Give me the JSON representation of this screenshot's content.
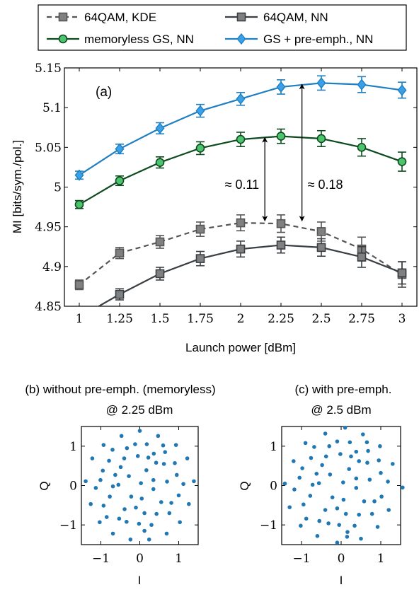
{
  "chart_data": [
    {
      "type": "line",
      "panel_label": "(a)",
      "xlabel": "Launch power [dBm]",
      "ylabel": "MI [bits/sym./pol.]",
      "xlim": [
        1,
        3
      ],
      "ylim": [
        4.85,
        5.15
      ],
      "x_ticks": [
        "1",
        "1.25",
        "1.5",
        "1.75",
        "2",
        "2.25",
        "2.5",
        "2.75",
        "3"
      ],
      "y_ticks": [
        "4.85",
        "4.9",
        "4.95",
        "5",
        "5.05",
        "5.1",
        "5.15"
      ],
      "grid": false,
      "legend_placement": "top (above plot)",
      "x": [
        1,
        1.25,
        1.5,
        1.75,
        2,
        2.25,
        2.5,
        2.75,
        3
      ],
      "series": [
        {
          "name": "64QAM, KDE",
          "style": "dashed",
          "marker": "square",
          "color": "#555555",
          "marker_fill": "#808080",
          "values": [
            4.877,
            4.917,
            4.931,
            4.947,
            4.955,
            4.954,
            4.944,
            4.922,
            4.89
          ],
          "errors": [
            0.006,
            0.007,
            0.008,
            0.009,
            0.01,
            0.011,
            0.012,
            0.015,
            0.016
          ]
        },
        {
          "name": "64QAM, NN",
          "style": "solid",
          "marker": "square",
          "color": "#3a3f44",
          "marker_fill": "#808080",
          "values": [
            4.836,
            4.865,
            4.891,
            4.91,
            4.922,
            4.927,
            4.924,
            4.912,
            4.892
          ],
          "errors": [
            0.006,
            0.007,
            0.008,
            0.009,
            0.01,
            0.01,
            0.011,
            0.013,
            0.014
          ]
        },
        {
          "name": "memoryless GS, NN",
          "style": "solid",
          "marker": "circle",
          "color": "#0d4a1e",
          "marker_fill": "#4cc36c",
          "values": [
            4.978,
            5.008,
            5.031,
            5.049,
            5.06,
            5.064,
            5.061,
            5.05,
            5.032
          ],
          "errors": [
            0.005,
            0.006,
            0.007,
            0.008,
            0.009,
            0.009,
            0.01,
            0.011,
            0.012
          ]
        },
        {
          "name": "GS + pre-emph., NN",
          "style": "solid",
          "marker": "diamond",
          "color": "#1f7fc0",
          "marker_fill": "#3aa0e8",
          "values": [
            5.015,
            5.048,
            5.074,
            5.096,
            5.111,
            5.126,
            5.131,
            5.129,
            5.122
          ],
          "errors": [
            0.005,
            0.006,
            0.007,
            0.008,
            0.008,
            0.009,
            0.009,
            0.01,
            0.01
          ]
        }
      ],
      "annotations": [
        {
          "text": "≈ 0.11",
          "x": 2.15,
          "y_from": 4.954,
          "y_to": 5.064
        },
        {
          "text": "≈ 0.18",
          "x": 2.38,
          "y_from": 4.954,
          "y_to": 5.131
        }
      ]
    },
    {
      "type": "scatter",
      "title": "(b) without pre-emph. (memoryless)",
      "subtitle": "@ 2.25 dBm",
      "xlabel": "I",
      "ylabel": "Q",
      "xlim": [
        -1.5,
        1.5
      ],
      "ylim": [
        -1.5,
        1.5
      ],
      "x_ticks": [
        "−1",
        "0",
        "1"
      ],
      "y_ticks": [
        "−1",
        "0",
        "1"
      ],
      "color": "#1f77b4",
      "points": [
        [
          0.0,
          1.39
        ],
        [
          -0.47,
          1.26
        ],
        [
          0.47,
          1.26
        ],
        [
          -0.93,
          1.03
        ],
        [
          0.93,
          1.03
        ],
        [
          -1.22,
          0.69
        ],
        [
          1.22,
          0.69
        ],
        [
          -1.39,
          0.11
        ],
        [
          1.39,
          0.11
        ],
        [
          -1.26,
          -0.47
        ],
        [
          1.26,
          -0.47
        ],
        [
          -1.03,
          -0.93
        ],
        [
          1.03,
          -0.93
        ],
        [
          -0.69,
          -1.22
        ],
        [
          0.69,
          -1.22
        ],
        [
          -0.24,
          -1.37
        ],
        [
          0.24,
          -1.37
        ],
        [
          0.18,
          1.05
        ],
        [
          -0.33,
          0.95
        ],
        [
          0.65,
          0.85
        ],
        [
          -0.79,
          0.63
        ],
        [
          0.95,
          0.27
        ],
        [
          -1.01,
          0.14
        ],
        [
          1.0,
          -0.25
        ],
        [
          -0.93,
          -0.51
        ],
        [
          0.76,
          -0.7
        ],
        [
          -0.53,
          -0.84
        ],
        [
          0.3,
          -1.0
        ],
        [
          -0.02,
          -0.97
        ],
        [
          -0.05,
          0.75
        ],
        [
          0.42,
          0.58
        ],
        [
          -0.49,
          0.47
        ],
        [
          0.7,
          0.1
        ],
        [
          -0.69,
          -0.02
        ],
        [
          0.55,
          -0.42
        ],
        [
          -0.39,
          -0.6
        ],
        [
          0.12,
          -0.7
        ],
        [
          0.17,
          0.39
        ],
        [
          -0.28,
          0.24
        ],
        [
          0.35,
          -0.09
        ],
        [
          -0.22,
          -0.28
        ],
        [
          0.03,
          0.06
        ],
        [
          -0.63,
          0.27
        ],
        [
          0.62,
          0.55
        ],
        [
          0.36,
          0.81
        ],
        [
          -0.77,
          -0.28
        ],
        [
          0.81,
          -0.44
        ],
        [
          -0.34,
          -0.92
        ],
        [
          0.05,
          -0.33
        ],
        [
          -0.4,
          0.69
        ],
        [
          -0.95,
          0.38
        ],
        [
          0.22,
          0.71
        ],
        [
          -0.55,
          0.02
        ],
        [
          0.43,
          -0.72
        ],
        [
          0.9,
          0.57
        ],
        [
          -0.12,
          1.05
        ],
        [
          0.6,
          1.02
        ],
        [
          -1.13,
          -0.06
        ],
        [
          0.35,
          0.14
        ],
        [
          -0.1,
          -0.56
        ],
        [
          1.12,
          0.04
        ],
        [
          -0.7,
          0.91
        ],
        [
          0.12,
          -1.15
        ],
        [
          -0.85,
          -0.8
        ]
      ]
    },
    {
      "type": "scatter",
      "title": "(c) with pre-emph.",
      "subtitle": "@ 2.5 dBm",
      "xlabel": "I",
      "ylabel": "Q",
      "xlim": [
        -1.5,
        1.5
      ],
      "ylim": [
        -1.5,
        1.5
      ],
      "x_ticks": [
        "−1",
        "0",
        "1"
      ],
      "y_ticks": [
        "−1",
        "0",
        "1"
      ],
      "color": "#1f77b4",
      "points": [
        [
          0.1,
          1.47
        ],
        [
          -0.4,
          1.32
        ],
        [
          0.55,
          1.3
        ],
        [
          -0.9,
          1.08
        ],
        [
          0.98,
          1.0
        ],
        [
          -1.2,
          0.62
        ],
        [
          1.3,
          0.55
        ],
        [
          -1.42,
          0.05
        ],
        [
          1.55,
          -0.05
        ],
        [
          -1.3,
          -0.55
        ],
        [
          1.2,
          -0.62
        ],
        [
          -1.02,
          -1.02
        ],
        [
          0.92,
          -1.05
        ],
        [
          -0.6,
          -1.28
        ],
        [
          0.5,
          -1.35
        ],
        [
          -0.1,
          -1.45
        ],
        [
          0.15,
          -1.3
        ],
        [
          0.22,
          1.1
        ],
        [
          -0.3,
          1.0
        ],
        [
          0.68,
          0.88
        ],
        [
          -0.76,
          0.7
        ],
        [
          1.0,
          0.32
        ],
        [
          -1.05,
          0.2
        ],
        [
          1.02,
          -0.28
        ],
        [
          -0.95,
          -0.48
        ],
        [
          0.78,
          -0.72
        ],
        [
          -0.55,
          -0.9
        ],
        [
          0.34,
          -1.02
        ],
        [
          -0.05,
          -1.0
        ],
        [
          -0.02,
          0.8
        ],
        [
          0.45,
          0.62
        ],
        [
          -0.48,
          0.52
        ],
        [
          0.72,
          0.15
        ],
        [
          -0.72,
          0.02
        ],
        [
          0.58,
          -0.4
        ],
        [
          -0.4,
          -0.62
        ],
        [
          0.12,
          -0.72
        ],
        [
          0.2,
          0.42
        ],
        [
          -0.28,
          0.28
        ],
        [
          0.38,
          -0.06
        ],
        [
          -0.22,
          -0.3
        ],
        [
          0.05,
          0.08
        ],
        [
          -0.62,
          0.3
        ],
        [
          0.66,
          0.58
        ],
        [
          0.38,
          0.86
        ],
        [
          -0.78,
          -0.26
        ],
        [
          0.84,
          -0.4
        ],
        [
          -0.32,
          -0.96
        ],
        [
          0.06,
          -0.36
        ],
        [
          -0.38,
          0.74
        ],
        [
          -0.98,
          0.44
        ],
        [
          0.25,
          0.74
        ],
        [
          -0.56,
          0.06
        ],
        [
          0.45,
          -0.74
        ],
        [
          0.95,
          0.64
        ],
        [
          -0.1,
          1.12
        ],
        [
          0.65,
          1.1
        ],
        [
          -1.18,
          -0.1
        ],
        [
          0.38,
          0.18
        ],
        [
          -0.1,
          -0.58
        ],
        [
          1.18,
          0.1
        ],
        [
          -0.68,
          0.98
        ],
        [
          0.16,
          -1.18
        ],
        [
          -0.88,
          -0.84
        ]
      ]
    }
  ]
}
